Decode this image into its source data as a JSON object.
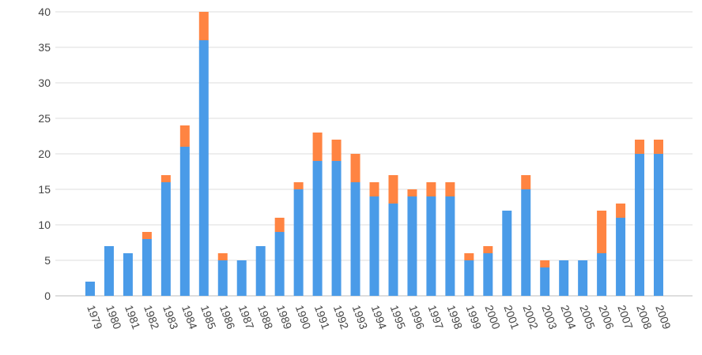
{
  "chart_data": {
    "type": "bar",
    "stacked": true,
    "grid": true,
    "legend": "none",
    "categories": [
      "1979",
      "1980",
      "1981",
      "1982",
      "1983",
      "1984",
      "1985",
      "1986",
      "1987",
      "1988",
      "1989",
      "1990",
      "1991",
      "1992",
      "1993",
      "1994",
      "1995",
      "1996",
      "1997",
      "1998",
      "1999",
      "2000",
      "2001",
      "2002",
      "2003",
      "2004",
      "2005",
      "2006",
      "2007",
      "2008",
      "2009"
    ],
    "series": [
      {
        "color": "#4a9be8",
        "values": [
          2,
          7,
          6,
          8,
          16,
          21,
          36,
          5,
          5,
          7,
          9,
          15,
          19,
          19,
          16,
          14,
          13,
          14,
          14,
          14,
          5,
          6,
          12,
          15,
          4,
          5,
          5,
          6,
          11,
          20,
          20
        ]
      },
      {
        "color": "#ff8442",
        "values": [
          0,
          0,
          0,
          1,
          1,
          3,
          4,
          1,
          0,
          0,
          2,
          1,
          4,
          3,
          4,
          2,
          4,
          1,
          2,
          2,
          1,
          1,
          0,
          2,
          1,
          0,
          0,
          6,
          2,
          2,
          2
        ]
      }
    ],
    "yticks": [
      "0",
      "5",
      "10",
      "15",
      "20",
      "25",
      "30",
      "35",
      "40"
    ],
    "ylim": [
      0,
      40
    ],
    "title": "",
    "xlabel": "",
    "ylabel": ""
  }
}
